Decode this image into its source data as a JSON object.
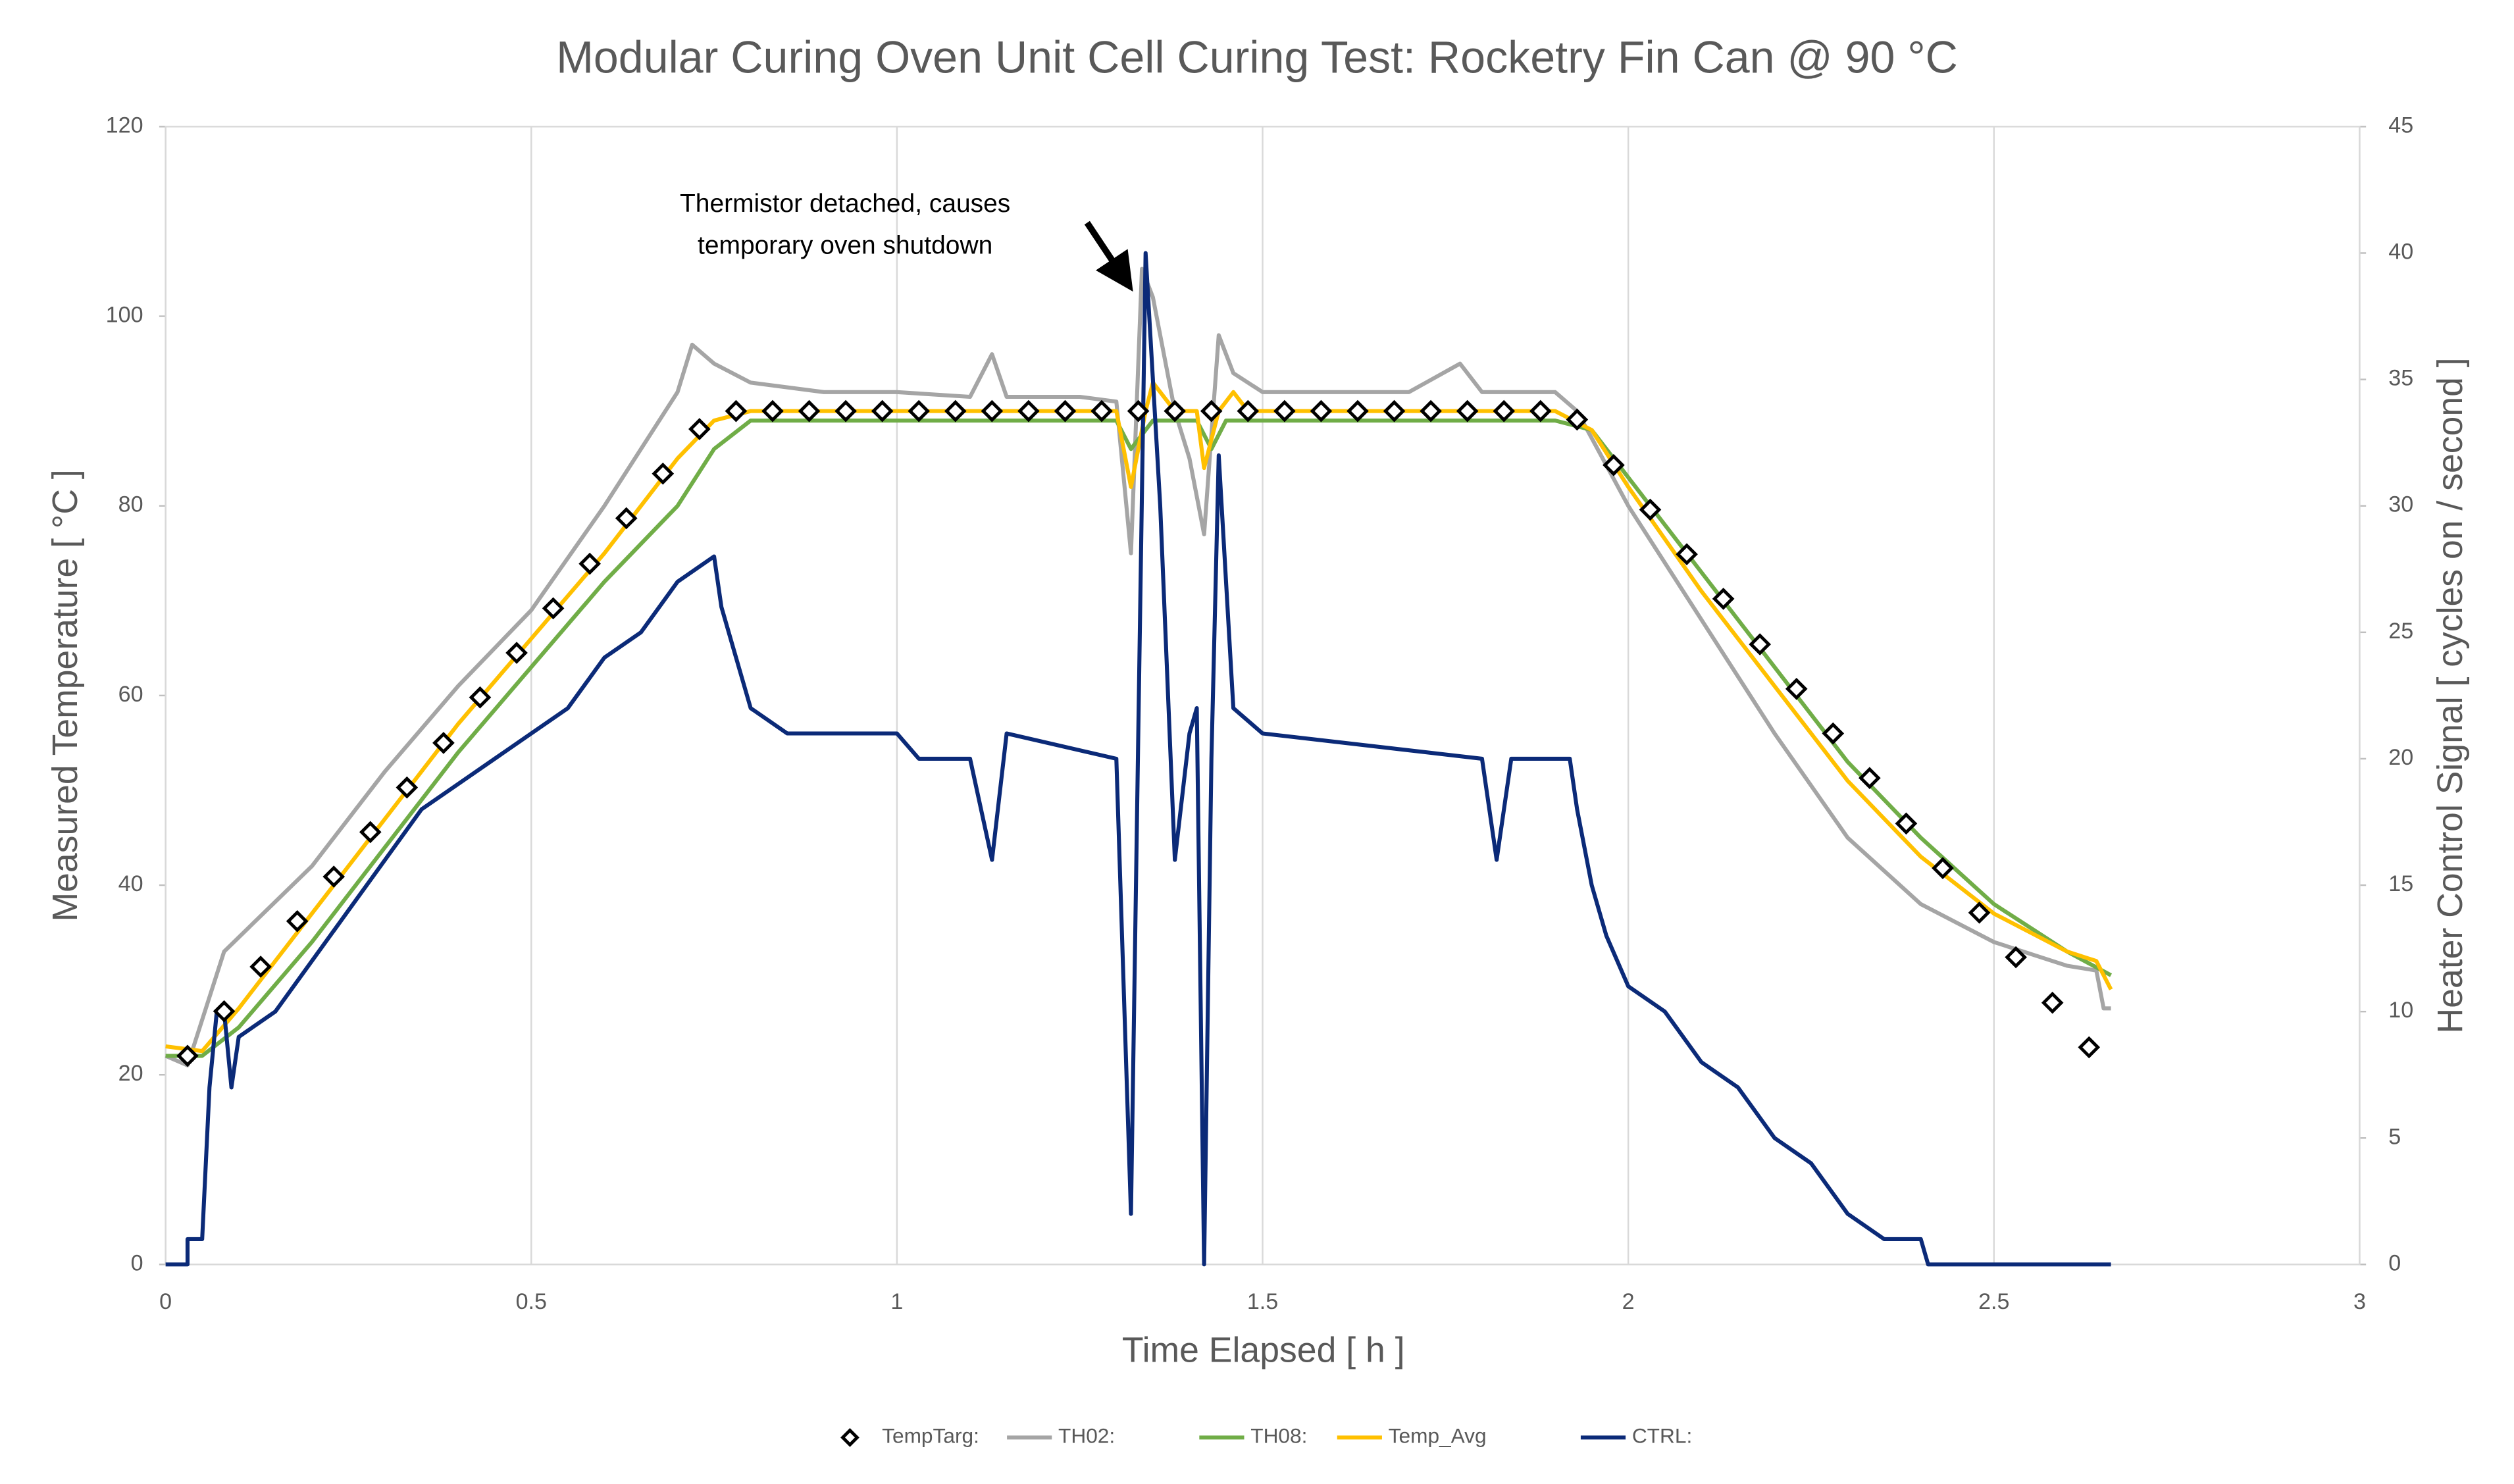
{
  "chart_data": {
    "type": "line",
    "title": "Modular Curing Oven Unit Cell Curing Test: Rocketry Fin Can @ 90 °C",
    "xlabel": "Time Elapsed [ h ]",
    "ylabel": "Measured Temperature [ °C ]",
    "y2label": "Heater Control Signal [ cycles on / second ]",
    "annotation": [
      "Thermistor detached, causes",
      "temporary oven shutdown"
    ],
    "xlim": [
      0,
      3
    ],
    "xticks": [
      0,
      0.5,
      1,
      1.5,
      2,
      2.5,
      3
    ],
    "ylim": [
      0,
      120
    ],
    "yticks": [
      0,
      20,
      40,
      60,
      80,
      100,
      120
    ],
    "y2lim": [
      0,
      45
    ],
    "y2ticks": [
      0,
      5,
      10,
      15,
      20,
      25,
      30,
      35,
      40,
      45
    ],
    "grid": true,
    "legend": "bottom",
    "series": [
      {
        "name": "TempTarg:",
        "color": "#000000",
        "marker": "diamond",
        "x": [
          0.03,
          0.08,
          0.13,
          0.18,
          0.23,
          0.28,
          0.33,
          0.38,
          0.43,
          0.48,
          0.53,
          0.58,
          0.63,
          0.68,
          0.73,
          0.78,
          0.83,
          0.88,
          0.93,
          0.98,
          1.03,
          1.08,
          1.13,
          1.18,
          1.23,
          1.28,
          1.33,
          1.38,
          1.43,
          1.48,
          1.53,
          1.58,
          1.63,
          1.68,
          1.73,
          1.78,
          1.83,
          1.88,
          1.93,
          1.98,
          2.03,
          2.08,
          2.13,
          2.18,
          2.23,
          2.28,
          2.33,
          2.38,
          2.43,
          2.48,
          2.53,
          2.58,
          2.63
        ],
        "values": [
          22,
          26.7,
          31.4,
          36.2,
          40.9,
          45.6,
          50.3,
          55,
          59.8,
          64.5,
          69.2,
          73.9,
          78.7,
          83.4,
          88.1,
          90,
          90,
          90,
          90,
          90,
          90,
          90,
          90,
          90,
          90,
          90,
          90,
          90,
          90,
          90,
          90,
          90,
          90,
          90,
          90,
          90,
          90,
          90,
          89.1,
          84.3,
          79.6,
          74.9,
          70.2,
          65.4,
          60.7,
          56,
          51.3,
          46.5,
          41.8,
          37.1,
          32.4,
          27.6,
          22.9
        ]
      },
      {
        "name": "TH02:",
        "color": "#a5a5a5",
        "x": [
          0,
          0.03,
          0.08,
          0.2,
          0.3,
          0.4,
          0.5,
          0.6,
          0.7,
          0.72,
          0.75,
          0.8,
          0.9,
          1,
          1.1,
          1.13,
          1.15,
          1.25,
          1.3,
          1.32,
          1.335,
          1.35,
          1.38,
          1.4,
          1.42,
          1.44,
          1.46,
          1.5,
          1.6,
          1.7,
          1.77,
          1.8,
          1.9,
          1.93,
          2,
          2.1,
          2.2,
          2.3,
          2.4,
          2.5,
          2.6,
          2.64,
          2.65,
          2.66
        ],
        "values": [
          22,
          21,
          33,
          42,
          52,
          61,
          69,
          80,
          92,
          97,
          95,
          93,
          92,
          92,
          91.5,
          96,
          91.5,
          91.5,
          91,
          75,
          105,
          102,
          90,
          85,
          77,
          98,
          94,
          92,
          92,
          92,
          95,
          92,
          92,
          90,
          80,
          68,
          56,
          45,
          38,
          34,
          31.5,
          31,
          27,
          27
        ]
      },
      {
        "name": "TH08:",
        "color": "#70ad47",
        "x": [
          0,
          0.05,
          0.1,
          0.2,
          0.3,
          0.4,
          0.5,
          0.6,
          0.7,
          0.75,
          0.8,
          0.9,
          1.3,
          1.32,
          1.35,
          1.41,
          1.43,
          1.45,
          1.9,
          1.95,
          2,
          2.1,
          2.2,
          2.3,
          2.4,
          2.5,
          2.6,
          2.66
        ],
        "values": [
          22,
          22,
          25,
          34,
          44,
          54,
          63,
          72,
          80,
          86,
          89,
          89,
          89,
          86,
          89,
          89,
          86,
          89,
          89,
          88,
          83,
          73,
          63,
          53,
          45,
          38,
          33,
          30.5
        ]
      },
      {
        "name": "Temp_Avg",
        "color": "#ffc000",
        "x": [
          0,
          0.05,
          0.1,
          0.2,
          0.3,
          0.4,
          0.5,
          0.6,
          0.7,
          0.75,
          0.8,
          1.3,
          1.32,
          1.34,
          1.35,
          1.38,
          1.41,
          1.42,
          1.44,
          1.46,
          1.48,
          1.9,
          1.95,
          2,
          2.1,
          2.2,
          2.3,
          2.4,
          2.5,
          2.6,
          2.64,
          2.66
        ],
        "values": [
          23,
          22.5,
          27,
          37,
          47,
          57,
          66,
          75,
          85,
          89,
          90,
          90,
          82,
          90,
          93,
          90,
          90,
          84,
          90,
          92,
          90,
          90,
          88,
          82,
          71,
          61,
          51,
          43,
          37,
          33,
          32,
          29
        ]
      },
      {
        "name": "CTRL:",
        "color": "#0b2a78",
        "axis": "y2",
        "x": [
          0,
          0.03,
          0.03,
          0.05,
          0.06,
          0.07,
          0.08,
          0.09,
          0.1,
          0.15,
          0.2,
          0.25,
          0.3,
          0.35,
          0.4,
          0.45,
          0.5,
          0.55,
          0.6,
          0.65,
          0.7,
          0.75,
          0.76,
          0.78,
          0.8,
          0.85,
          1,
          1.03,
          1.1,
          1.13,
          1.15,
          1.3,
          1.32,
          1.34,
          1.36,
          1.38,
          1.4,
          1.41,
          1.42,
          1.43,
          1.44,
          1.46,
          1.5,
          1.8,
          1.82,
          1.84,
          1.92,
          1.93,
          1.95,
          1.97,
          2,
          2.05,
          2.1,
          2.15,
          2.2,
          2.25,
          2.3,
          2.35,
          2.4,
          2.41,
          2.66
        ],
        "values": [
          0,
          0,
          1,
          1,
          7,
          10,
          10,
          7,
          9,
          10,
          12,
          14,
          16,
          18,
          19,
          20,
          21,
          22,
          24,
          25,
          27,
          28,
          26,
          24,
          22,
          21,
          21,
          20,
          20,
          16,
          21,
          20,
          2,
          40,
          30,
          16,
          21,
          22,
          0,
          20,
          32,
          22,
          21,
          20,
          16,
          20,
          20,
          18,
          15,
          13,
          11,
          10,
          8,
          7,
          5,
          4,
          2,
          1,
          1,
          0,
          0
        ]
      }
    ]
  }
}
